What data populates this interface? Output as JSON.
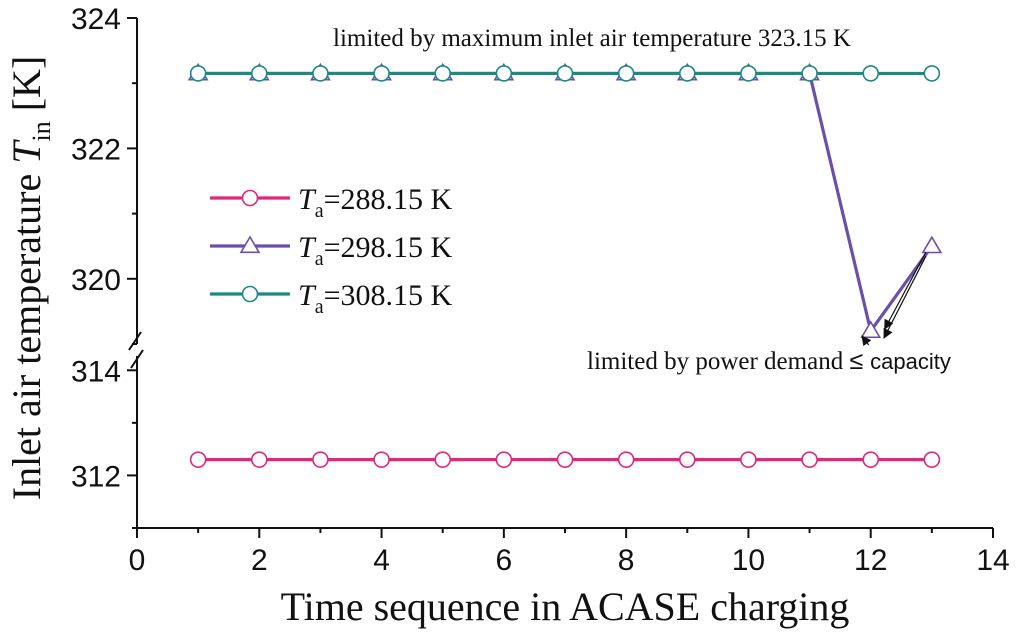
{
  "chart_data": {
    "type": "line",
    "xlabel": "Time sequence in ACASE charging",
    "ylabel": {
      "main": "Inlet air temperature ",
      "symbol": "T",
      "subscript": "in",
      "unit": " [K]"
    },
    "xlim": [
      0,
      14
    ],
    "ylim_upper": [
      319,
      324
    ],
    "ylim_lower": [
      311,
      314.5
    ],
    "axis_break": "between 314.5 and 319",
    "x_ticks": [
      0,
      2,
      4,
      6,
      8,
      10,
      12,
      14
    ],
    "y_ticks": [
      312,
      314,
      320,
      322,
      324
    ],
    "legend_placement": "left-middle",
    "x": [
      1,
      2,
      3,
      4,
      5,
      6,
      7,
      8,
      9,
      10,
      11,
      12,
      13
    ],
    "series": [
      {
        "name": "Ta=288.15 K",
        "symbol": "T",
        "subscript": "a",
        "value_label": "=288.15 K",
        "color": "#e0267f",
        "marker": "circle",
        "values": [
          312.3,
          312.3,
          312.3,
          312.3,
          312.3,
          312.3,
          312.3,
          312.3,
          312.3,
          312.3,
          312.3,
          312.3,
          312.3
        ]
      },
      {
        "name": "Ta=298.15 K",
        "symbol": "T",
        "subscript": "a",
        "value_label": "=298.15 K",
        "color": "#6b4fab",
        "marker": "triangle",
        "values": [
          323.15,
          323.15,
          323.15,
          323.15,
          323.15,
          323.15,
          323.15,
          323.15,
          323.15,
          323.15,
          323.15,
          319.2,
          320.5
        ]
      },
      {
        "name": "Ta=308.15 K",
        "symbol": "T",
        "subscript": "a",
        "value_label": "=308.15 K",
        "color": "#1a8a82",
        "marker": "circle",
        "values": [
          323.15,
          323.15,
          323.15,
          323.15,
          323.15,
          323.15,
          323.15,
          323.15,
          323.15,
          323.15,
          323.15,
          323.15,
          323.15
        ]
      }
    ],
    "annotations": [
      {
        "text": "limited by maximum inlet air temperature 323.15 K"
      },
      {
        "text": "limited by power demand ",
        "symbol": "≤",
        "tail": "capacity",
        "targets_x": [
          12,
          13
        ]
      }
    ]
  }
}
